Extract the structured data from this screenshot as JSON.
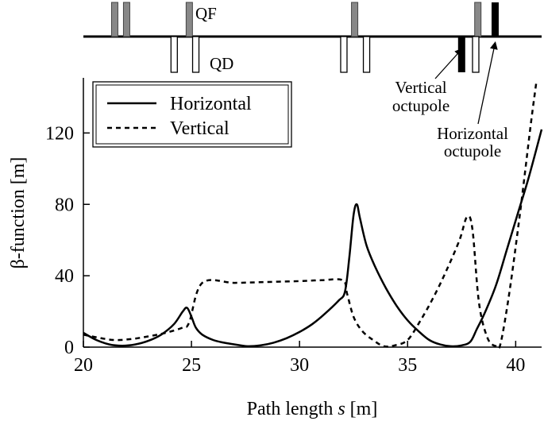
{
  "chart_data": {
    "type": "line",
    "xlabel_prefix": "Path length ",
    "xlabel_var": "s",
    "xlabel_suffix": " [m]",
    "ylabel": "β-function [m]",
    "xlim": [
      20,
      41.2
    ],
    "ylim": [
      0,
      150
    ],
    "xticks": [
      20,
      25,
      30,
      35,
      40
    ],
    "yticks": [
      0,
      40,
      80,
      120
    ],
    "legend_position": "top-left",
    "series": [
      {
        "name": "Horizontal",
        "style": "solid",
        "points": [
          [
            20,
            8
          ],
          [
            20.6,
            4
          ],
          [
            21.2,
            1.5
          ],
          [
            21.8,
            0.8
          ],
          [
            22.4,
            1.5
          ],
          [
            23,
            3.5
          ],
          [
            23.6,
            7
          ],
          [
            24.2,
            13
          ],
          [
            24.6,
            20
          ],
          [
            24.8,
            22
          ],
          [
            25.0,
            17
          ],
          [
            25.2,
            11
          ],
          [
            25.5,
            7
          ],
          [
            26,
            4
          ],
          [
            26.5,
            2.5
          ],
          [
            27,
            1.5
          ],
          [
            27.6,
            0.5
          ],
          [
            28.2,
            1
          ],
          [
            28.8,
            2.5
          ],
          [
            29.4,
            5
          ],
          [
            30,
            8.5
          ],
          [
            30.6,
            13
          ],
          [
            31.2,
            19
          ],
          [
            31.8,
            26
          ],
          [
            32.1,
            31
          ],
          [
            32.3,
            50
          ],
          [
            32.5,
            74
          ],
          [
            32.65,
            80
          ],
          [
            32.8,
            72
          ],
          [
            33.1,
            57
          ],
          [
            33.5,
            45
          ],
          [
            34,
            33
          ],
          [
            34.5,
            23
          ],
          [
            35,
            15
          ],
          [
            35.5,
            9
          ],
          [
            36,
            4
          ],
          [
            36.5,
            1.5
          ],
          [
            37,
            0.5
          ],
          [
            37.5,
            1
          ],
          [
            37.9,
            3
          ],
          [
            38.2,
            10
          ],
          [
            38.6,
            20
          ],
          [
            39.1,
            35
          ],
          [
            39.6,
            55
          ],
          [
            40.1,
            75
          ],
          [
            40.6,
            95
          ],
          [
            41.2,
            122
          ]
        ]
      },
      {
        "name": "Vertical",
        "style": "dashed",
        "points": [
          [
            20,
            7
          ],
          [
            20.6,
            5.5
          ],
          [
            21.4,
            4
          ],
          [
            22.2,
            4.5
          ],
          [
            23,
            6
          ],
          [
            23.8,
            8
          ],
          [
            24.6,
            11
          ],
          [
            24.9,
            14
          ],
          [
            25.5,
            36
          ],
          [
            27,
            36
          ],
          [
            28.5,
            36.5
          ],
          [
            30,
            37
          ],
          [
            31,
            37.5
          ],
          [
            32,
            37.5
          ],
          [
            32.2,
            30
          ],
          [
            32.5,
            17
          ],
          [
            32.9,
            9
          ],
          [
            33.4,
            4
          ],
          [
            33.9,
            0.5
          ],
          [
            34.4,
            1
          ],
          [
            35,
            4
          ],
          [
            35.6,
            15
          ],
          [
            36.2,
            28
          ],
          [
            36.8,
            43
          ],
          [
            37.4,
            60
          ],
          [
            37.75,
            73
          ],
          [
            38.0,
            66
          ],
          [
            38.3,
            25
          ],
          [
            38.7,
            5
          ],
          [
            39.1,
            0.5
          ],
          [
            39.3,
            2
          ],
          [
            39.7,
            30
          ],
          [
            40.2,
            75
          ],
          [
            40.7,
            125
          ],
          [
            40.95,
            148
          ]
        ]
      }
    ]
  },
  "lattice": {
    "qf_label": "QF",
    "qd_label": "QD",
    "qf_positions": [
      21.45,
      22.0,
      24.9,
      32.55,
      38.25
    ],
    "qd_positions": [
      24.2,
      25.2,
      32.05,
      33.1,
      38.15
    ],
    "vertical_octupole_position": 37.5,
    "horizontal_octupole_position": 39.05,
    "vertical_octupole_label": [
      "Vertical",
      "octupole"
    ],
    "horizontal_octupole_label": [
      "Horizontal",
      "octupole"
    ]
  }
}
